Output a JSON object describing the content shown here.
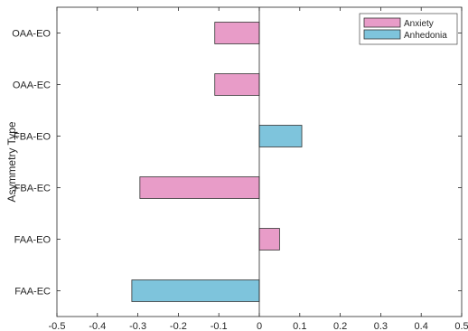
{
  "chart_data": {
    "type": "bar",
    "orientation": "horizontal",
    "title": "",
    "xlabel": "",
    "ylabel": "Asymmetry Type",
    "xlim": [
      -0.5,
      0.5
    ],
    "xticks": [
      "-0.5",
      "-0.4",
      "-0.3",
      "-0.2",
      "-0.1",
      "0",
      "0.1",
      "0.2",
      "0.3",
      "0.4",
      "0.5"
    ],
    "categories": [
      "OAA-EO",
      "OAA-EC",
      "FBA-EO",
      "FBA-EC",
      "FAA-EO",
      "FAA-EC"
    ],
    "bars": [
      {
        "category": "OAA-EO",
        "value": -0.11,
        "series": "Anxiety"
      },
      {
        "category": "OAA-EC",
        "value": -0.11,
        "series": "Anxiety"
      },
      {
        "category": "FBA-EO",
        "value": 0.105,
        "series": "Anhedonia"
      },
      {
        "category": "FBA-EC",
        "value": -0.295,
        "series": "Anxiety"
      },
      {
        "category": "FAA-EO",
        "value": 0.05,
        "series": "Anxiety"
      },
      {
        "category": "FAA-EC",
        "value": -0.315,
        "series": "Anhedonia"
      }
    ],
    "series": [
      {
        "name": "Anxiety",
        "color": "#e89cc8"
      },
      {
        "name": "Anhedonia",
        "color": "#7ec4dc"
      }
    ],
    "legend_position": "top-right",
    "grid": false
  }
}
